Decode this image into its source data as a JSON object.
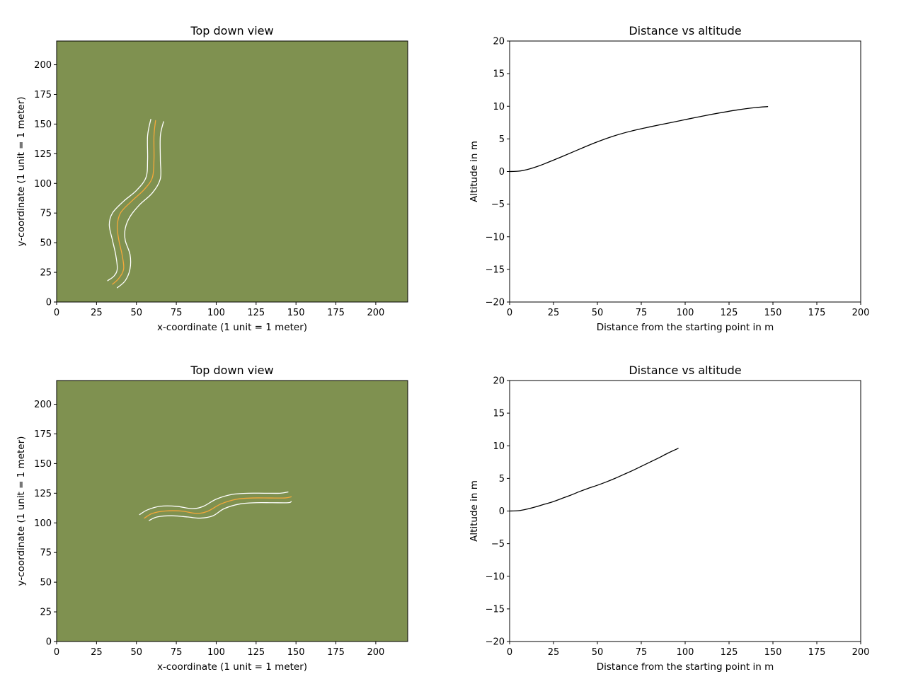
{
  "chart_data": [
    {
      "type": "line",
      "panel": "top-left",
      "title": "Top down view",
      "xlabel": "x-coordinate (1 unit = 1 meter)",
      "ylabel": "y-coordinate (1 unit = 1 meter)",
      "xlim": [
        0,
        220
      ],
      "ylim": [
        0,
        220
      ],
      "xticks": [
        0,
        25,
        50,
        75,
        100,
        125,
        150,
        175,
        200
      ],
      "yticks": [
        0,
        25,
        50,
        75,
        100,
        125,
        150,
        175,
        200
      ],
      "background": "#7f9150",
      "grid": false,
      "series": [
        {
          "role": "left-edge",
          "color": "#ffffff",
          "x": [
            32,
            36,
            38,
            37,
            35,
            33,
            35,
            42,
            50,
            56,
            57,
            57,
            59
          ],
          "y": [
            18,
            22,
            28,
            40,
            52,
            65,
            75,
            85,
            94,
            105,
            120,
            140,
            154
          ]
        },
        {
          "role": "center-line",
          "color": "#f5a83a",
          "x": [
            35,
            39,
            42,
            41,
            39,
            38,
            40,
            47,
            55,
            60,
            61,
            61,
            62
          ],
          "y": [
            15,
            20,
            28,
            40,
            52,
            64,
            75,
            85,
            95,
            105,
            120,
            140,
            153
          ]
        },
        {
          "role": "right-edge",
          "color": "#ffffff",
          "x": [
            38,
            43,
            46,
            46,
            43,
            43,
            46,
            52,
            60,
            65,
            65,
            65,
            67
          ],
          "y": [
            12,
            18,
            28,
            40,
            52,
            62,
            72,
            82,
            92,
            104,
            120,
            140,
            152
          ]
        }
      ]
    },
    {
      "type": "line",
      "panel": "top-right",
      "title": "Distance vs altitude",
      "xlabel": "Distance from the starting point in m",
      "ylabel": "Altitude in m",
      "xlim": [
        0,
        200
      ],
      "ylim": [
        -20,
        20
      ],
      "xticks": [
        0,
        25,
        50,
        75,
        100,
        125,
        150,
        175,
        200
      ],
      "yticks": [
        -20,
        -15,
        -10,
        -5,
        0,
        5,
        10,
        15,
        20
      ],
      "grid": false,
      "series": [
        {
          "color": "#000000",
          "x": [
            0,
            5,
            10,
            15,
            20,
            25,
            30,
            40,
            50,
            60,
            70,
            80,
            90,
            100,
            110,
            120,
            130,
            140,
            147
          ],
          "y": [
            0,
            0.05,
            0.3,
            0.7,
            1.2,
            1.75,
            2.3,
            3.45,
            4.55,
            5.5,
            6.25,
            6.85,
            7.4,
            7.95,
            8.5,
            9.0,
            9.45,
            9.8,
            9.95
          ]
        }
      ]
    },
    {
      "type": "line",
      "panel": "bottom-left",
      "title": "Top down view",
      "xlabel": "x-coordinate (1 unit = 1 meter)",
      "ylabel": "y-coordinate (1 unit = 1 meter)",
      "xlim": [
        0,
        220
      ],
      "ylim": [
        0,
        220
      ],
      "xticks": [
        0,
        25,
        50,
        75,
        100,
        125,
        150,
        175,
        200
      ],
      "yticks": [
        0,
        25,
        50,
        75,
        100,
        125,
        150,
        175,
        200
      ],
      "background": "#7f9150",
      "grid": false,
      "series": [
        {
          "role": "upper-edge",
          "color": "#ffffff",
          "x": [
            52,
            57,
            65,
            75,
            85,
            92,
            100,
            110,
            120,
            130,
            140,
            145
          ],
          "y": [
            107,
            111,
            114,
            114,
            112,
            114,
            120,
            124,
            125,
            125,
            125,
            126
          ]
        },
        {
          "role": "center-line",
          "color": "#f5a83a",
          "x": [
            55,
            60,
            68,
            78,
            88,
            95,
            103,
            113,
            123,
            133,
            143,
            147
          ],
          "y": [
            104,
            108,
            110,
            110,
            108,
            110,
            116,
            120,
            121,
            121,
            121,
            122
          ]
        },
        {
          "role": "lower-edge",
          "color": "#ffffff",
          "x": [
            58,
            63,
            72,
            82,
            90,
            98,
            105,
            115,
            125,
            135,
            145,
            147
          ],
          "y": [
            102,
            105,
            106,
            105,
            104,
            106,
            112,
            116,
            117,
            117,
            117,
            118
          ]
        }
      ]
    },
    {
      "type": "line",
      "panel": "bottom-right",
      "title": "Distance vs altitude",
      "xlabel": "Distance from the starting point in m",
      "ylabel": "Altitude in m",
      "xlim": [
        0,
        200
      ],
      "ylim": [
        -20,
        20
      ],
      "xticks": [
        0,
        25,
        50,
        75,
        100,
        125,
        150,
        175,
        200
      ],
      "yticks": [
        -20,
        -15,
        -10,
        -5,
        0,
        5,
        10,
        15,
        20
      ],
      "grid": false,
      "series": [
        {
          "color": "#000000",
          "x": [
            0,
            5,
            10,
            15,
            20,
            25,
            30,
            35,
            40,
            45,
            50,
            55,
            60,
            65,
            70,
            75,
            80,
            85,
            90,
            96
          ],
          "y": [
            0,
            0.05,
            0.3,
            0.65,
            1.05,
            1.45,
            1.95,
            2.45,
            3.0,
            3.5,
            3.95,
            4.45,
            5.0,
            5.6,
            6.2,
            6.85,
            7.5,
            8.15,
            8.85,
            9.6
          ]
        }
      ]
    }
  ]
}
